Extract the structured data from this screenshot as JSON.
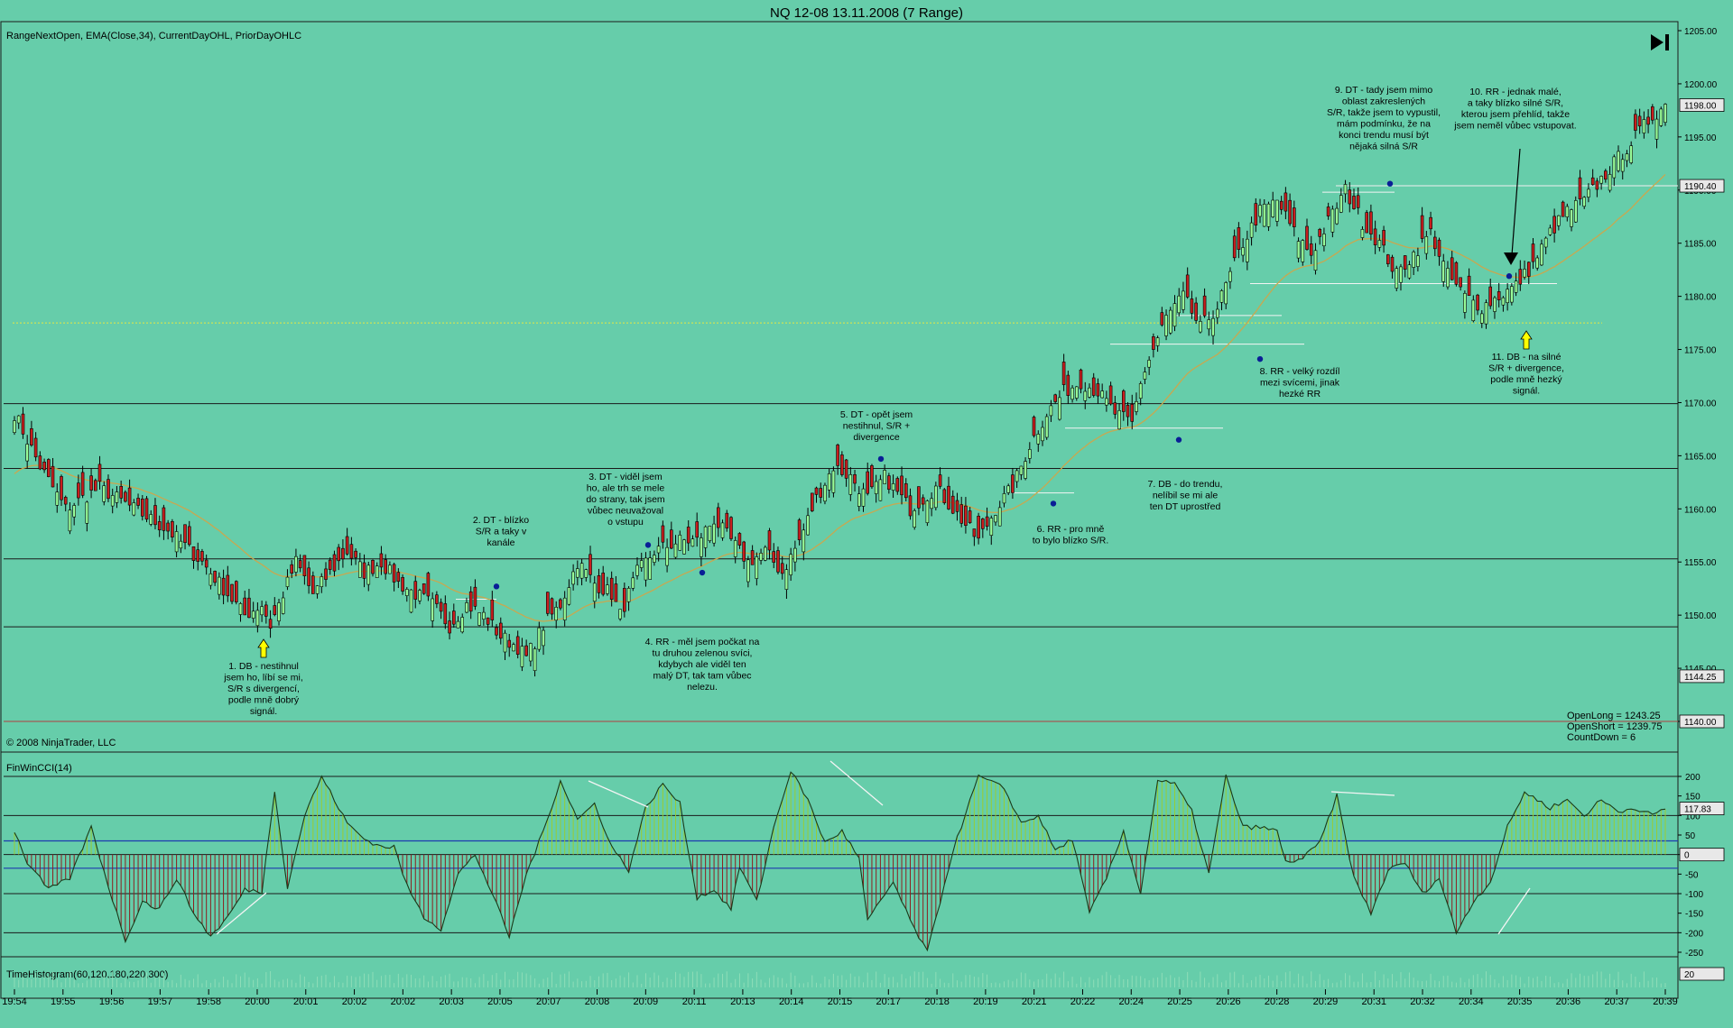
{
  "title": "NQ 12-08  13.11.2008 (7 Range)",
  "colors": {
    "background": "#66CDAA",
    "up_candle": "#98FB98",
    "down_candle": "#C81E1E",
    "ema": "#C8A850",
    "cci_line": "#1a3a1a",
    "cci_pos_hist": "#9ACD32",
    "cci_neg_hist": "#8B2020",
    "blue_dot": "#0A1E96",
    "prior_high_dotted": "#E8E840"
  },
  "price_panel": {
    "indicator_label": "RangeNextOpen, EMA(Close,34), CurrentDayOHL, PriorDayOHLC",
    "copyright": "© 2008 NinjaTrader, LLC",
    "axis_ticks": [
      "1205.00",
      "1200.00",
      "1195.00",
      "1190.00",
      "1185.00",
      "1180.00",
      "1175.00",
      "1170.00",
      "1165.00",
      "1160.00",
      "1155.00",
      "1150.00",
      "1145.00",
      "1140.00"
    ],
    "price_badges": [
      "1198.00",
      "1190.40",
      "1144.25",
      "1140.00"
    ],
    "stats": [
      "OpenLong = 1243.25",
      "OpenShort = 1239.75",
      "CountDown = 6"
    ],
    "annotations": [
      {
        "lines": [
          "1. DB - nestihnul",
          "jsem ho, líbí se mi,",
          "S/R s divergencí,",
          "podle mně dobrý",
          "signál."
        ]
      },
      {
        "lines": [
          "2. DT - blízko",
          "S/R a taky v",
          "kanále"
        ]
      },
      {
        "lines": [
          "3. DT - viděl jsem",
          "ho, ale trh se mele",
          "do strany, tak jsem",
          "vůbec neuvažoval",
          "o vstupu"
        ]
      },
      {
        "lines": [
          "4. RR - měl jsem počkat na",
          "tu druhou zelenou svíci,",
          "kdybych ale viděl ten",
          "malý DT, tak tam vůbec",
          "nelezu."
        ]
      },
      {
        "lines": [
          "5. DT - opět jsem",
          "nestihnul, S/R +",
          "divergence"
        ]
      },
      {
        "lines": [
          "6. RR - pro mně",
          "to bylo blízko S/R."
        ]
      },
      {
        "lines": [
          "7. DB - do trendu,",
          "nelíbil se mi ale",
          "ten DT uprostřed"
        ]
      },
      {
        "lines": [
          "8. RR - velký rozdíl",
          "mezi svícemi, jinak",
          "hezké RR"
        ]
      },
      {
        "lines": [
          "9. DT - tady jsem mimo",
          "oblast zakreslených",
          "S/R, takže jsem to vypustil,",
          "mám podmínku, že na",
          "konci trendu musí být",
          "nějaká silná S/R"
        ]
      },
      {
        "lines": [
          "10. RR - jednak malé,",
          "a taky blízko silné S/R,",
          "kterou jsem přehlíd, takže",
          "jsem neměl vůbec vstupovat."
        ]
      },
      {
        "lines": [
          "11. DB - na silné",
          "S/R + divergence,",
          "podle mně hezký",
          "signál."
        ]
      }
    ]
  },
  "cci_panel": {
    "label": "FinWinCCI(14)",
    "axis_ticks": [
      "200",
      "150",
      "100",
      "50",
      "0",
      "-50",
      "-100",
      "-150",
      "-200",
      "-250"
    ],
    "value_badge": "117.83",
    "zero_badge": "0"
  },
  "time_panel": {
    "label": "TimeHistogram(60,120,180,220,300)",
    "value_badge": "20"
  },
  "x_axis": {
    "labels": [
      "19:54",
      "19:55",
      "19:56",
      "19:57",
      "19:58",
      "20:00",
      "20:01",
      "20:02",
      "20:02",
      "20:03",
      "20:05",
      "20:07",
      "20:08",
      "20:09",
      "20:11",
      "20:13",
      "20:14",
      "20:15",
      "20:17",
      "20:18",
      "20:19",
      "20:21",
      "20:22",
      "20:24",
      "20:25",
      "20:26",
      "20:28",
      "20:29",
      "20:31",
      "20:32",
      "20:34",
      "20:35",
      "20:36",
      "20:37",
      "20:39"
    ]
  },
  "chart_data": {
    "type": "candlestick",
    "instrument": "NQ 12-08",
    "date": "13.11.2008",
    "bar_type": "7 Range",
    "ylim": [
      1137,
      1206
    ],
    "close_path_anchors": [
      [
        0,
        1169
      ],
      [
        6,
        1164
      ],
      [
        12,
        1160
      ],
      [
        20,
        1162
      ],
      [
        28,
        1160
      ],
      [
        36,
        1158
      ],
      [
        44,
        1155
      ],
      [
        50,
        1152
      ],
      [
        54,
        1150
      ],
      [
        58,
        1151
      ],
      [
        60,
        1149
      ],
      [
        62,
        1151
      ],
      [
        66,
        1155
      ],
      [
        70,
        1152
      ],
      [
        74,
        1154
      ],
      [
        78,
        1156
      ],
      [
        82,
        1154
      ],
      [
        86,
        1155
      ],
      [
        90,
        1153
      ],
      [
        94,
        1152
      ],
      [
        98,
        1151
      ],
      [
        102,
        1149
      ],
      [
        106,
        1151
      ],
      [
        110,
        1150
      ],
      [
        114,
        1148
      ],
      [
        118,
        1147
      ],
      [
        120,
        1146
      ],
      [
        124,
        1149
      ],
      [
        128,
        1151
      ],
      [
        132,
        1155
      ],
      [
        136,
        1153
      ],
      [
        140,
        1152
      ],
      [
        142,
        1150
      ],
      [
        146,
        1154
      ],
      [
        150,
        1156
      ],
      [
        156,
        1157
      ],
      [
        160,
        1157
      ],
      [
        164,
        1159
      ],
      [
        168,
        1157
      ],
      [
        172,
        1155
      ],
      [
        176,
        1156
      ],
      [
        180,
        1154
      ],
      [
        184,
        1157
      ],
      [
        188,
        1161
      ],
      [
        192,
        1164
      ],
      [
        196,
        1163
      ],
      [
        200,
        1161
      ],
      [
        204,
        1163
      ],
      [
        210,
        1160
      ],
      [
        216,
        1162
      ],
      [
        222,
        1159
      ],
      [
        226,
        1157
      ],
      [
        230,
        1160
      ],
      [
        234,
        1162
      ],
      [
        238,
        1166
      ],
      [
        242,
        1169
      ],
      [
        246,
        1171
      ],
      [
        250,
        1172
      ],
      [
        254,
        1171
      ],
      [
        258,
        1169
      ],
      [
        262,
        1168
      ],
      [
        264,
        1172
      ],
      [
        270,
        1178
      ],
      [
        274,
        1180
      ],
      [
        278,
        1177
      ],
      [
        282,
        1179
      ],
      [
        288,
        1185
      ],
      [
        292,
        1188
      ],
      [
        296,
        1189
      ],
      [
        300,
        1186
      ],
      [
        304,
        1184
      ],
      [
        308,
        1187
      ],
      [
        312,
        1190
      ],
      [
        316,
        1187
      ],
      [
        320,
        1185
      ],
      [
        324,
        1182
      ],
      [
        328,
        1184
      ],
      [
        332,
        1186
      ],
      [
        336,
        1182
      ],
      [
        340,
        1180
      ],
      [
        344,
        1179
      ],
      [
        348,
        1180
      ],
      [
        352,
        1181
      ],
      [
        356,
        1183
      ],
      [
        360,
        1186
      ],
      [
        364,
        1188
      ],
      [
        368,
        1189
      ],
      [
        372,
        1191
      ],
      [
        376,
        1193
      ],
      [
        380,
        1195
      ],
      [
        384,
        1197
      ],
      [
        387,
        1198
      ]
    ],
    "ema_period": 34,
    "horizontal_levels": [
      1169.9,
      1163.8,
      1155.3,
      1148.9,
      1140.0,
      1190.4
    ],
    "prior_day_dotted_level": 1177.5,
    "cci_ylim": [
      -270,
      225
    ],
    "cci_levels": [
      200,
      100,
      0,
      -100,
      -200
    ],
    "cci_inner_bands": [
      35,
      -35
    ],
    "cci_path_anchors": [
      [
        0,
        60
      ],
      [
        3,
        -20
      ],
      [
        8,
        -90
      ],
      [
        13,
        -60
      ],
      [
        18,
        70
      ],
      [
        22,
        -80
      ],
      [
        26,
        -220
      ],
      [
        30,
        -120
      ],
      [
        34,
        -140
      ],
      [
        38,
        -60
      ],
      [
        42,
        -150
      ],
      [
        46,
        -210
      ],
      [
        50,
        -160
      ],
      [
        54,
        -90
      ],
      [
        58,
        -95
      ],
      [
        61,
        165
      ],
      [
        64,
        -85
      ],
      [
        68,
        100
      ],
      [
        72,
        200
      ],
      [
        78,
        80
      ],
      [
        82,
        40
      ],
      [
        86,
        20
      ],
      [
        89,
        20
      ],
      [
        92,
        -80
      ],
      [
        96,
        -160
      ],
      [
        100,
        -190
      ],
      [
        104,
        -50
      ],
      [
        108,
        0
      ],
      [
        112,
        -100
      ],
      [
        116,
        -210
      ],
      [
        120,
        -50
      ],
      [
        124,
        60
      ],
      [
        128,
        190
      ],
      [
        132,
        90
      ],
      [
        136,
        130
      ],
      [
        140,
        20
      ],
      [
        144,
        -40
      ],
      [
        148,
        120
      ],
      [
        152,
        180
      ],
      [
        156,
        130
      ],
      [
        160,
        -110
      ],
      [
        164,
        -90
      ],
      [
        168,
        -140
      ],
      [
        170,
        -30
      ],
      [
        174,
        -120
      ],
      [
        178,
        70
      ],
      [
        182,
        215
      ],
      [
        186,
        140
      ],
      [
        190,
        30
      ],
      [
        194,
        60
      ],
      [
        198,
        -10
      ],
      [
        200,
        -170
      ],
      [
        206,
        -70
      ],
      [
        210,
        -170
      ],
      [
        214,
        -250
      ],
      [
        220,
        10
      ],
      [
        226,
        200
      ],
      [
        232,
        170
      ],
      [
        236,
        80
      ],
      [
        240,
        100
      ],
      [
        244,
        10
      ],
      [
        248,
        40
      ],
      [
        252,
        -150
      ],
      [
        256,
        -60
      ],
      [
        260,
        60
      ],
      [
        264,
        -100
      ],
      [
        268,
        190
      ],
      [
        272,
        180
      ],
      [
        276,
        110
      ],
      [
        280,
        -50
      ],
      [
        284,
        200
      ],
      [
        288,
        70
      ],
      [
        292,
        70
      ],
      [
        296,
        60
      ],
      [
        298,
        -20
      ],
      [
        302,
        -10
      ],
      [
        306,
        30
      ],
      [
        310,
        150
      ],
      [
        314,
        -60
      ],
      [
        318,
        -150
      ],
      [
        322,
        -40
      ],
      [
        326,
        -20
      ],
      [
        330,
        -100
      ],
      [
        334,
        -60
      ],
      [
        338,
        -200
      ],
      [
        342,
        -120
      ],
      [
        346,
        -70
      ],
      [
        350,
        70
      ],
      [
        354,
        160
      ],
      [
        360,
        120
      ],
      [
        364,
        140
      ],
      [
        368,
        100
      ],
      [
        372,
        140
      ],
      [
        376,
        110
      ],
      [
        380,
        120
      ],
      [
        384,
        100
      ],
      [
        387,
        117.83
      ]
    ]
  }
}
